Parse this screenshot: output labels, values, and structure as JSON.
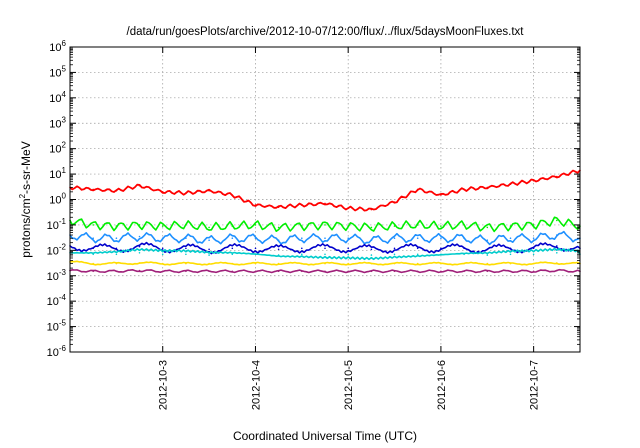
{
  "chart_data": {
    "type": "line",
    "title": "/data/run/goesPlots/archive/2012-10-07/12:00/flux/../flux/5daysMoonFluxes.txt",
    "xlabel": "Coordinated Universal Time (UTC)",
    "ylabel": {
      "prefix": "protons/cm",
      "sup": "2",
      "suffix": "-s-sr-MeV"
    },
    "y_scale": "log",
    "ylim": [
      1e-06,
      1000000.0
    ],
    "xlim": [
      "2012-10-02T00:00",
      "2012-10-07T12:00"
    ],
    "grid": true,
    "y_ticks": [
      {
        "value": 1e-06,
        "base": "10",
        "exp": "-6"
      },
      {
        "value": 1e-05,
        "base": "10",
        "exp": "-5"
      },
      {
        "value": 0.0001,
        "base": "10",
        "exp": "-4"
      },
      {
        "value": 0.001,
        "base": "10",
        "exp": "-3"
      },
      {
        "value": 0.01,
        "base": "10",
        "exp": "-2"
      },
      {
        "value": 0.1,
        "base": "10",
        "exp": "-1"
      },
      {
        "value": 1,
        "base": "10",
        "exp": "0"
      },
      {
        "value": 10.0,
        "base": "10",
        "exp": "1"
      },
      {
        "value": 100.0,
        "base": "10",
        "exp": "2"
      },
      {
        "value": 1000.0,
        "base": "10",
        "exp": "3"
      },
      {
        "value": 10000.0,
        "base": "10",
        "exp": "4"
      },
      {
        "value": 100000.0,
        "base": "10",
        "exp": "5"
      },
      {
        "value": 1000000.0,
        "base": "10",
        "exp": "6"
      }
    ],
    "x_ticks": [
      {
        "x": "2012-10-03T00:00",
        "label": "2012-10-3"
      },
      {
        "x": "2012-10-04T00:00",
        "label": "2012-10-4"
      },
      {
        "x": "2012-10-05T00:00",
        "label": "2012-10-5"
      },
      {
        "x": "2012-10-06T00:00",
        "label": "2012-10-6"
      },
      {
        "x": "2012-10-07T00:00",
        "label": "2012-10-7"
      }
    ],
    "series": [
      {
        "color": "#ff0000",
        "x": [
          "2012-10-02T00:00",
          "2012-10-02T06:00",
          "2012-10-02T12:00",
          "2012-10-02T18:00",
          "2012-10-03T00:00",
          "2012-10-03T06:00",
          "2012-10-03T12:00",
          "2012-10-03T18:00",
          "2012-10-04T00:00",
          "2012-10-04T06:00",
          "2012-10-04T12:00",
          "2012-10-04T18:00",
          "2012-10-05T00:00",
          "2012-10-05T06:00",
          "2012-10-05T12:00",
          "2012-10-05T18:00",
          "2012-10-06T00:00",
          "2012-10-06T06:00",
          "2012-10-06T12:00",
          "2012-10-06T18:00",
          "2012-10-07T00:00",
          "2012-10-07T06:00",
          "2012-10-07T12:00"
        ],
        "values": [
          3.0,
          2.5,
          2.2,
          3.5,
          2.0,
          1.8,
          2.2,
          1.5,
          0.6,
          0.5,
          0.6,
          0.7,
          0.45,
          0.4,
          0.8,
          2.5,
          1.5,
          2.5,
          3.0,
          4.0,
          5.5,
          8.0,
          14.0
        ]
      },
      {
        "color": "#00ee00",
        "x": [
          "2012-10-02T00:00",
          "2012-10-02T06:00",
          "2012-10-02T12:00",
          "2012-10-02T18:00",
          "2012-10-03T00:00",
          "2012-10-03T06:00",
          "2012-10-03T12:00",
          "2012-10-03T18:00",
          "2012-10-04T00:00",
          "2012-10-04T06:00",
          "2012-10-04T12:00",
          "2012-10-04T18:00",
          "2012-10-05T00:00",
          "2012-10-05T06:00",
          "2012-10-05T12:00",
          "2012-10-05T18:00",
          "2012-10-06T00:00",
          "2012-10-06T06:00",
          "2012-10-06T12:00",
          "2012-10-06T18:00",
          "2012-10-07T00:00",
          "2012-10-07T06:00",
          "2012-10-07T12:00"
        ],
        "values": [
          0.15,
          0.1,
          0.09,
          0.1,
          0.09,
          0.1,
          0.08,
          0.09,
          0.1,
          0.08,
          0.09,
          0.1,
          0.09,
          0.08,
          0.09,
          0.1,
          0.09,
          0.1,
          0.08,
          0.09,
          0.1,
          0.15,
          0.09
        ]
      },
      {
        "color": "#1e90ff",
        "x": [
          "2012-10-02T00:00",
          "2012-10-02T06:00",
          "2012-10-02T12:00",
          "2012-10-02T18:00",
          "2012-10-03T00:00",
          "2012-10-03T06:00",
          "2012-10-03T12:00",
          "2012-10-03T18:00",
          "2012-10-04T00:00",
          "2012-10-04T06:00",
          "2012-10-04T12:00",
          "2012-10-04T18:00",
          "2012-10-05T00:00",
          "2012-10-05T06:00",
          "2012-10-05T12:00",
          "2012-10-05T18:00",
          "2012-10-06T00:00",
          "2012-10-06T06:00",
          "2012-10-06T12:00",
          "2012-10-06T18:00",
          "2012-10-07T00:00",
          "2012-10-07T06:00",
          "2012-10-07T12:00"
        ],
        "values": [
          0.04,
          0.03,
          0.03,
          0.035,
          0.03,
          0.03,
          0.025,
          0.03,
          0.03,
          0.025,
          0.03,
          0.03,
          0.03,
          0.025,
          0.03,
          0.03,
          0.03,
          0.03,
          0.025,
          0.03,
          0.03,
          0.04,
          0.03
        ]
      },
      {
        "color": "#0000cc",
        "x": [
          "2012-10-02T00:00",
          "2012-10-02T06:00",
          "2012-10-02T12:00",
          "2012-10-02T18:00",
          "2012-10-03T00:00",
          "2012-10-03T06:00",
          "2012-10-03T12:00",
          "2012-10-03T18:00",
          "2012-10-04T00:00",
          "2012-10-04T06:00",
          "2012-10-04T12:00",
          "2012-10-04T18:00",
          "2012-10-05T00:00",
          "2012-10-05T06:00",
          "2012-10-05T12:00",
          "2012-10-05T18:00",
          "2012-10-06T00:00",
          "2012-10-06T06:00",
          "2012-10-06T12:00",
          "2012-10-06T18:00",
          "2012-10-07T00:00",
          "2012-10-07T06:00",
          "2012-10-07T12:00"
        ],
        "values": [
          0.015,
          0.012,
          0.012,
          0.014,
          0.012,
          0.012,
          0.011,
          0.012,
          0.012,
          0.011,
          0.012,
          0.012,
          0.012,
          0.011,
          0.012,
          0.012,
          0.012,
          0.012,
          0.011,
          0.012,
          0.012,
          0.015,
          0.012
        ]
      },
      {
        "color": "#00cccc",
        "x": [
          "2012-10-02T00:00",
          "2012-10-02T06:00",
          "2012-10-02T12:00",
          "2012-10-02T18:00",
          "2012-10-03T00:00",
          "2012-10-03T06:00",
          "2012-10-03T12:00",
          "2012-10-03T18:00",
          "2012-10-04T00:00",
          "2012-10-04T06:00",
          "2012-10-04T12:00",
          "2012-10-04T18:00",
          "2012-10-05T00:00",
          "2012-10-05T06:00",
          "2012-10-05T12:00",
          "2012-10-05T18:00",
          "2012-10-06T00:00",
          "2012-10-06T06:00",
          "2012-10-06T12:00",
          "2012-10-06T18:00",
          "2012-10-07T00:00",
          "2012-10-07T06:00",
          "2012-10-07T12:00"
        ],
        "values": [
          0.008,
          0.007,
          0.007,
          0.008,
          0.007,
          0.007,
          0.0065,
          0.007,
          0.007,
          0.0065,
          0.007,
          0.007,
          0.007,
          0.0065,
          0.007,
          0.007,
          0.007,
          0.007,
          0.0065,
          0.007,
          0.007,
          0.008,
          0.007
        ]
      },
      {
        "color": "#ffdd00",
        "x": [
          "2012-10-02T00:00",
          "2012-10-02T06:00",
          "2012-10-02T12:00",
          "2012-10-02T18:00",
          "2012-10-03T00:00",
          "2012-10-03T06:00",
          "2012-10-03T12:00",
          "2012-10-03T18:00",
          "2012-10-04T00:00",
          "2012-10-04T06:00",
          "2012-10-04T12:00",
          "2012-10-04T18:00",
          "2012-10-05T00:00",
          "2012-10-05T06:00",
          "2012-10-05T12:00",
          "2012-10-05T18:00",
          "2012-10-06T00:00",
          "2012-10-06T06:00",
          "2012-10-06T12:00",
          "2012-10-06T18:00",
          "2012-10-07T00:00",
          "2012-10-07T06:00",
          "2012-10-07T12:00"
        ],
        "values": [
          0.0035,
          0.003,
          0.003,
          0.0032,
          0.003,
          0.003,
          0.003,
          0.003,
          0.003,
          0.003,
          0.003,
          0.003,
          0.003,
          0.003,
          0.003,
          0.003,
          0.003,
          0.003,
          0.003,
          0.003,
          0.003,
          0.0032,
          0.003
        ]
      },
      {
        "color": "#a0207a",
        "x": [
          "2012-10-02T00:00",
          "2012-10-02T06:00",
          "2012-10-02T12:00",
          "2012-10-02T18:00",
          "2012-10-03T00:00",
          "2012-10-03T06:00",
          "2012-10-03T12:00",
          "2012-10-03T18:00",
          "2012-10-04T00:00",
          "2012-10-04T06:00",
          "2012-10-04T12:00",
          "2012-10-04T18:00",
          "2012-10-05T00:00",
          "2012-10-05T06:00",
          "2012-10-05T12:00",
          "2012-10-05T18:00",
          "2012-10-06T00:00",
          "2012-10-06T06:00",
          "2012-10-06T12:00",
          "2012-10-06T18:00",
          "2012-10-07T00:00",
          "2012-10-07T06:00",
          "2012-10-07T12:00"
        ],
        "values": [
          0.0016,
          0.0015,
          0.0015,
          0.0016,
          0.0015,
          0.0015,
          0.0015,
          0.0015,
          0.0015,
          0.0015,
          0.0015,
          0.0015,
          0.0015,
          0.0015,
          0.0015,
          0.0015,
          0.0015,
          0.0015,
          0.0015,
          0.0015,
          0.0015,
          0.0016,
          0.0015
        ]
      }
    ]
  }
}
